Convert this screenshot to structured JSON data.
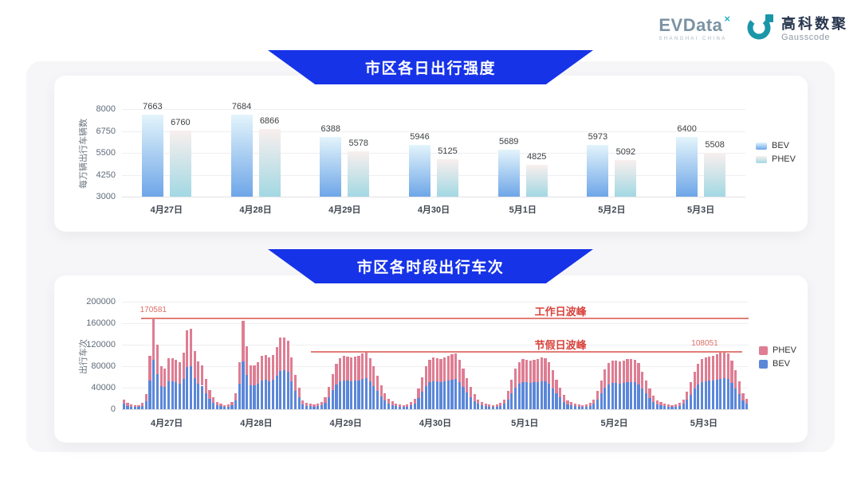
{
  "header": {
    "evdata": {
      "text": "EVData",
      "sup": "×",
      "tagline": "SHANGHAI CHINA"
    },
    "gausscode": {
      "cn": "高科数聚",
      "en": "Gausscode"
    }
  },
  "colors": {
    "banner_blue": "#1733e8",
    "panel_bg": "#f6f6f8",
    "bev_top": "#e3f4fb",
    "bev_bottom": "#6ea6e8",
    "phev_top": "#f9efee",
    "phev_bottom": "#a2d8e3",
    "bev_solid": "#5b87d9",
    "phev_solid": "#de7d93",
    "annotation_line": "#e27d78",
    "annotation_text": "#d8433c",
    "annotation_value": "#dd6f68"
  },
  "chart_data": [
    {
      "type": "bar",
      "title": "市区各日出行强度",
      "ylabel": "每万辆出行车辆数",
      "xlabel": "",
      "ylim": [
        3000,
        8000
      ],
      "yticks": [
        3000,
        4250,
        5500,
        6750,
        8000
      ],
      "grid": true,
      "legend_position": "right",
      "legend": [
        "BEV",
        "PHEV"
      ],
      "categories": [
        "4月27日",
        "4月28日",
        "4月29日",
        "4月30日",
        "5月1日",
        "5月2日",
        "5月3日"
      ],
      "series": [
        {
          "name": "BEV",
          "values": [
            7663,
            7684,
            6388,
            5946,
            5689,
            5973,
            6400
          ]
        },
        {
          "name": "PHEV",
          "values": [
            6760,
            6866,
            5578,
            5125,
            4825,
            5092,
            5508
          ]
        }
      ]
    },
    {
      "type": "bar",
      "stacked": true,
      "title": "市区各时段出行车次",
      "ylabel": "出行车次",
      "xlabel": "",
      "ylim": [
        0,
        200000
      ],
      "yticks": [
        0,
        40000,
        80000,
        120000,
        160000,
        200000
      ],
      "grid": true,
      "legend_position": "right",
      "legend": [
        "PHEV",
        "BEV"
      ],
      "bars_per_category": 24,
      "categories": [
        "4月27日",
        "4月28日",
        "4月29日",
        "4月30日",
        "5月1日",
        "5月2日",
        "5月3日"
      ],
      "series": [
        {
          "name": "BEV",
          "values": [
            [
              9700,
              6500,
              4900,
              3800,
              4300,
              6500,
              15100,
              54000,
              92100,
              64800,
              43200,
              41000,
              51300,
              51300,
              49700,
              47500,
              56700,
              78800,
              80500,
              58300,
              48100,
              43700,
              30200,
              18900
            ],
            [
              11900,
              7600,
              5400,
              4300,
              4900,
              7600,
              16200,
              47500,
              88600,
              63200,
              44300,
              44300,
              47500,
              54000,
              54500,
              51800,
              54500,
              62600,
              71800,
              72400,
              69100,
              51800,
              34000,
              21600
            ],
            [
              8600,
              6500,
              5400,
              4900,
              5400,
              7600,
              11900,
              22700,
              35100,
              45900,
              51300,
              54000,
              52900,
              51800,
              52900,
              54000,
              56200,
              58300,
              51300,
              43200,
              33500,
              24300,
              16200,
              10800
            ],
            [
              8100,
              5900,
              4900,
              4300,
              4900,
              7000,
              10800,
              20500,
              32400,
              43200,
              49700,
              52400,
              51300,
              50200,
              51800,
              53500,
              55100,
              56200,
              49700,
              41000,
              31300,
              22700,
              15100,
              9700
            ],
            [
              7600,
              5900,
              4900,
              4300,
              4900,
              6500,
              9700,
              18400,
              29700,
              40500,
              47500,
              50200,
              49700,
              48600,
              49700,
              50800,
              51800,
              51300,
              47500,
              38900,
              29700,
              21600,
              14000,
              9200
            ],
            [
              7600,
              5400,
              4900,
              4300,
              4900,
              6500,
              9700,
              18400,
              29200,
              40000,
              46400,
              49100,
              48600,
              48100,
              49100,
              50200,
              50800,
              49700,
              46400,
              37800,
              29200,
              20500,
              13500,
              8600
            ],
            [
              7000,
              5900,
              4900,
              4300,
              4900,
              6500,
              9700,
              17300,
              27000,
              37800,
              45900,
              50200,
              51800,
              52900,
              54000,
              55100,
              56700,
              58300,
              55600,
              48600,
              38900,
              28100,
              16200,
              10800
            ]
          ]
        },
        {
          "name": "PHEV",
          "values": [
            [
              8300,
              5500,
              4100,
              3200,
              3700,
              5500,
              12900,
              46000,
              78481,
              55200,
              36800,
              35000,
              43700,
              43700,
              42300,
              40500,
              48300,
              67200,
              68500,
              49700,
              40900,
              37300,
              25800,
              16100
            ],
            [
              10100,
              6400,
              4600,
              3700,
              4100,
              6400,
              13800,
              40500,
              75400,
              53800,
              37700,
              37700,
              40500,
              46000,
              46500,
              44200,
              46500,
              53400,
              61200,
              61600,
              58900,
              44200,
              29000,
              18400
            ],
            [
              7400,
              5500,
              4600,
              4100,
              4600,
              6400,
              10100,
              19300,
              29900,
              39100,
              43700,
              46000,
              45100,
              44200,
              45100,
              46000,
              47800,
              49700,
              43700,
              36800,
              28500,
              20700,
              13800,
              9200
            ],
            [
              6900,
              5100,
              4100,
              3700,
              4100,
              6000,
              9200,
              17500,
              27600,
              36800,
              42300,
              44600,
              43700,
              42800,
              44200,
              45500,
              46900,
              47800,
              42300,
              35000,
              26700,
              19300,
              12900,
              8300
            ],
            [
              6400,
              5100,
              4100,
              3700,
              4100,
              5500,
              8300,
              15600,
              25300,
              34500,
              40500,
              42800,
              42300,
              41400,
              42300,
              43200,
              44200,
              43700,
              40500,
              33100,
              25300,
              18400,
              12000,
              7800
            ],
            [
              6400,
              4600,
              4100,
              3700,
              4100,
              5500,
              8300,
              15600,
              24800,
              34000,
              39600,
              41900,
              41400,
              40900,
              41900,
              42800,
              43200,
              42300,
              39600,
              32200,
              24800,
              17500,
              11500,
              7400
            ],
            [
              6000,
              5100,
              4100,
              3700,
              4100,
              5500,
              8300,
              14700,
              23000,
              32200,
              39100,
              42800,
              44200,
              45100,
              46000,
              46900,
              48300,
              49751,
              47400,
              41400,
              33100,
              23900,
              13800,
              9200
            ]
          ]
        }
      ],
      "annotations": [
        {
          "name": "工作日波峰",
          "value": 170581,
          "value_label": "170581",
          "x_start": 0.03,
          "x_end": 1.0,
          "label_x": 0.7,
          "value_x": 0.05
        },
        {
          "name": "节假日波峰",
          "value": 108051,
          "value_label": "108051",
          "x_start": 0.302,
          "x_end": 0.99,
          "label_x": 0.7,
          "value_x": 0.93
        }
      ]
    }
  ]
}
